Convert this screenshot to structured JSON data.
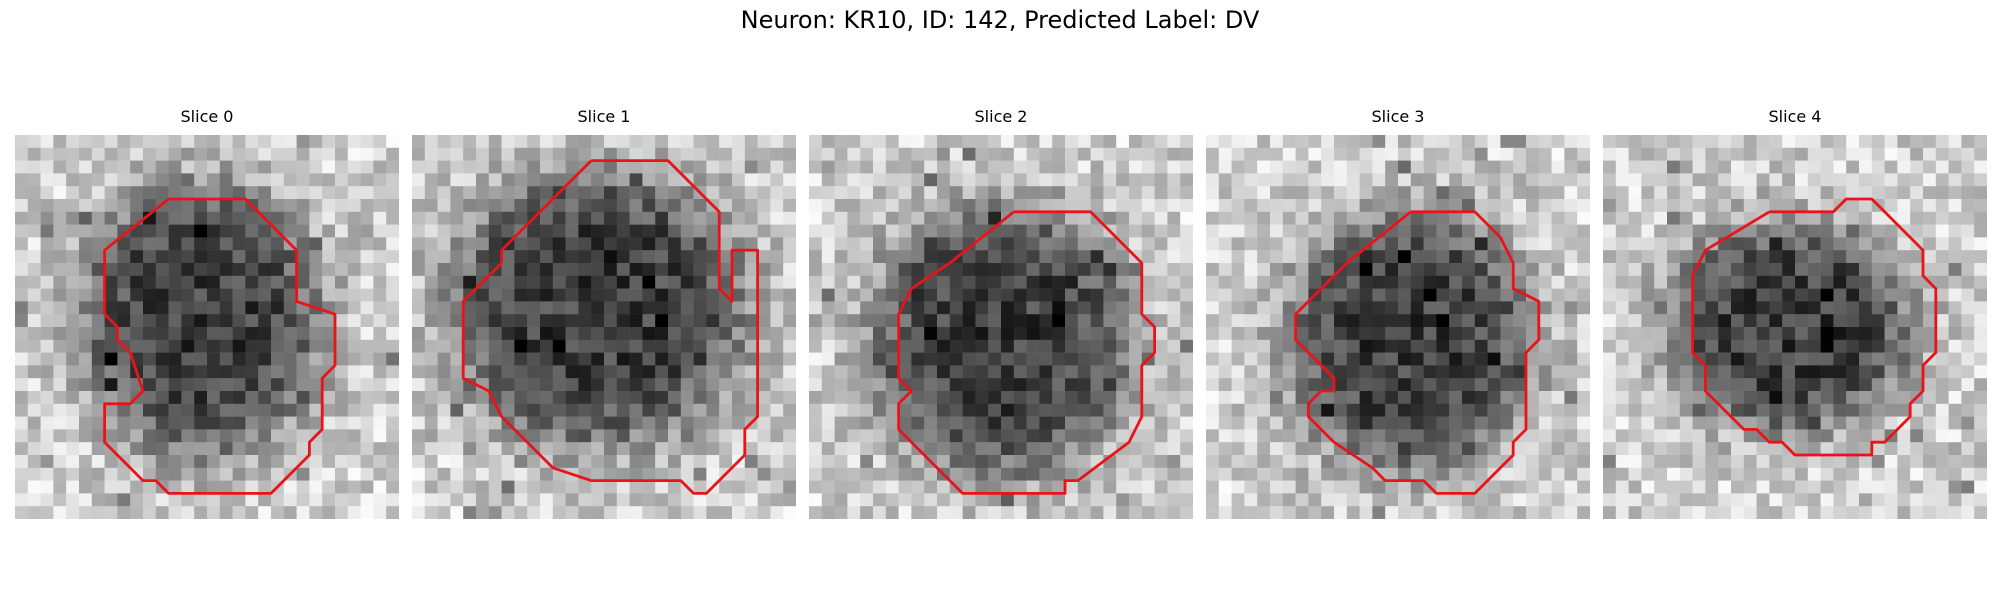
{
  "figure": {
    "title": "Neuron: KR10, ID: 142, Predicted Label: DV"
  },
  "panels": [
    {
      "title": "Slice 0",
      "seed": 11,
      "blob": {
        "cx": 14.5,
        "cy": 14.5,
        "rx": 9.2,
        "ry": 10.5
      }
    },
    {
      "title": "Slice 1",
      "seed": 23,
      "blob": {
        "cx": 14.5,
        "cy": 13.5,
        "rx": 11.5,
        "ry": 10.5
      }
    },
    {
      "title": "Slice 2",
      "seed": 37,
      "blob": {
        "cx": 15.0,
        "cy": 16.0,
        "rx": 10.0,
        "ry": 10.5
      }
    },
    {
      "title": "Slice 3",
      "seed": 41,
      "blob": {
        "cx": 16.0,
        "cy": 16.0,
        "rx": 9.5,
        "ry": 10.0
      }
    },
    {
      "title": "Slice 4",
      "seed": 59,
      "blob": {
        "cx": 14.5,
        "cy": 15.0,
        "rx": 9.5,
        "ry": 8.0
      }
    }
  ],
  "colors": {
    "contour": "#e8141a"
  }
}
